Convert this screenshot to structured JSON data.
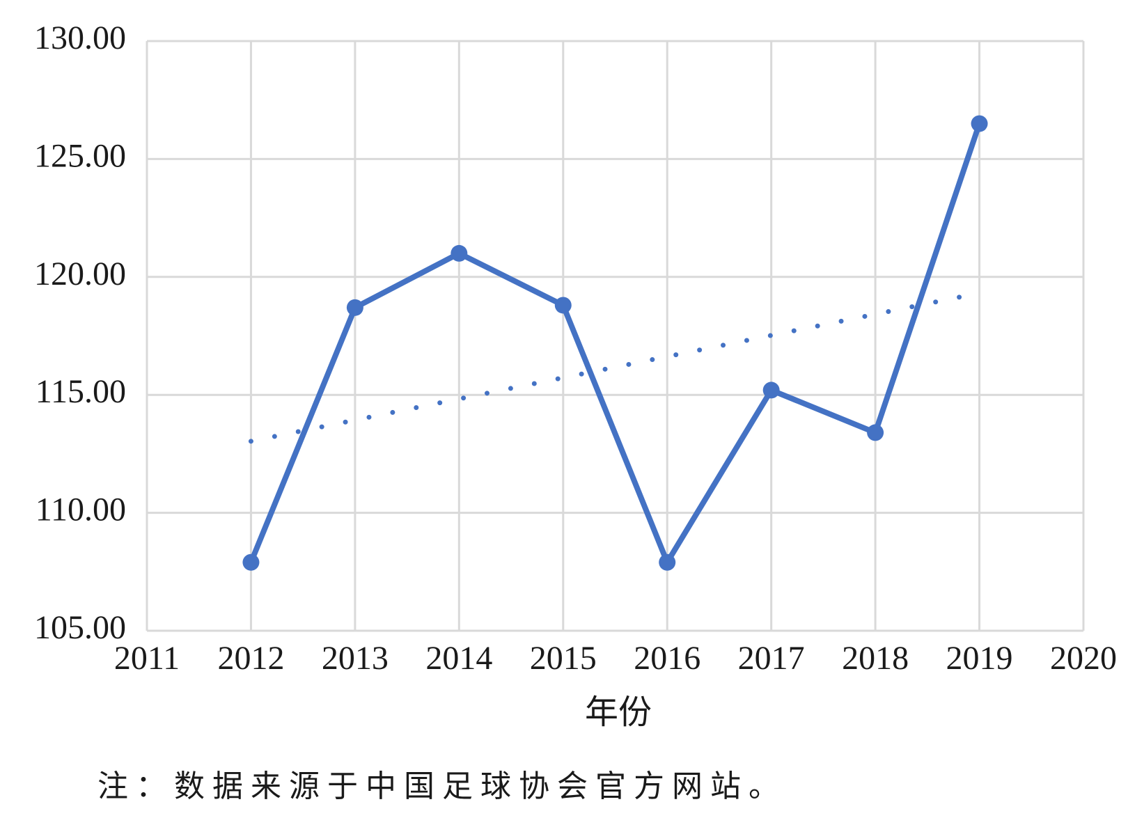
{
  "chart_data": {
    "type": "line",
    "x_label": "年份",
    "note": "注：数据来源于中国足球协会官方网站。",
    "x": [
      2012,
      2013,
      2014,
      2015,
      2016,
      2017,
      2018,
      2019
    ],
    "series": [
      {
        "color": "#4472c4",
        "values": [
          107.9,
          118.7,
          121.0,
          118.8,
          107.9,
          115.2,
          113.4,
          126.5
        ],
        "trendline": "linear"
      }
    ],
    "xlim": [
      2011,
      2020
    ],
    "xticks": [
      2011,
      2012,
      2013,
      2014,
      2015,
      2016,
      2017,
      2018,
      2019,
      2020
    ],
    "ylim": [
      105,
      130
    ],
    "yticks": [
      {
        "value": 105,
        "label": "105.00"
      },
      {
        "value": 110,
        "label": "110.00"
      },
      {
        "value": 115,
        "label": "115.00"
      },
      {
        "value": 120,
        "label": "120.00"
      },
      {
        "value": 125,
        "label": "125.00"
      },
      {
        "value": 130,
        "label": "130.00"
      }
    ],
    "grid": true
  }
}
